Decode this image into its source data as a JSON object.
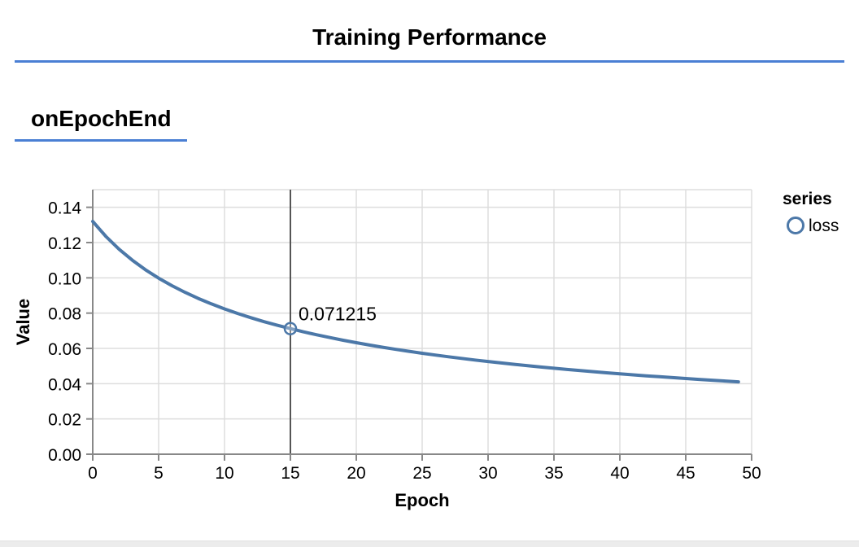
{
  "header": {
    "title": "Training Performance"
  },
  "section": {
    "title": "onEpochEnd"
  },
  "theme": {
    "accent": "#4a7fd4",
    "line_color": "#4c78a8",
    "grid_color": "#dddddd",
    "axis_color": "#888888",
    "rule_color": "#555555",
    "text_color": "#000000",
    "footer_strip": "#ececec"
  },
  "chart_data": {
    "type": "line",
    "title": "",
    "xlabel": "Epoch",
    "ylabel": "Value",
    "xlim": [
      0,
      50
    ],
    "ylim": [
      0,
      0.15
    ],
    "x_ticks": [
      0,
      5,
      10,
      15,
      20,
      25,
      30,
      35,
      40,
      45,
      50
    ],
    "y_ticks": [
      0,
      0.02,
      0.04,
      0.06,
      0.08,
      0.1,
      0.12,
      0.14
    ],
    "grid": true,
    "legend": {
      "title": "series",
      "position": "right",
      "entries": [
        {
          "label": "loss",
          "color": "#4c78a8",
          "symbol": "circle"
        }
      ]
    },
    "x": [
      0,
      1,
      2,
      3,
      4,
      5,
      6,
      7,
      8,
      9,
      10,
      11,
      12,
      13,
      14,
      15,
      16,
      17,
      18,
      19,
      20,
      21,
      22,
      23,
      24,
      25,
      26,
      27,
      28,
      29,
      30,
      31,
      32,
      33,
      34,
      35,
      36,
      37,
      38,
      39,
      40,
      41,
      42,
      43,
      44,
      45,
      46,
      47,
      48,
      49
    ],
    "series": [
      {
        "name": "loss",
        "color": "#4c78a8",
        "values": [
          0.131977,
          0.123453,
          0.11623,
          0.110014,
          0.104599,
          0.099825,
          0.095585,
          0.091783,
          0.088352,
          0.085237,
          0.082392,
          0.079786,
          0.077383,
          0.075159,
          0.073093,
          0.071215,
          0.069377,
          0.067697,
          0.066119,
          0.064632,
          0.063231,
          0.061906,
          0.060651,
          0.05946,
          0.058329,
          0.057252,
          0.056226,
          0.055246,
          0.054309,
          0.053413,
          0.052554,
          0.051731,
          0.050941,
          0.050181,
          0.04945,
          0.048747,
          0.048069,
          0.047415,
          0.046784,
          0.046174,
          0.045585,
          0.045014,
          0.044462,
          0.043927,
          0.043408,
          0.042905,
          0.042417,
          0.041943,
          0.041482,
          0.041034
        ]
      }
    ],
    "highlight": {
      "x": 15,
      "value": 0.071215,
      "label": "0.071215"
    }
  }
}
